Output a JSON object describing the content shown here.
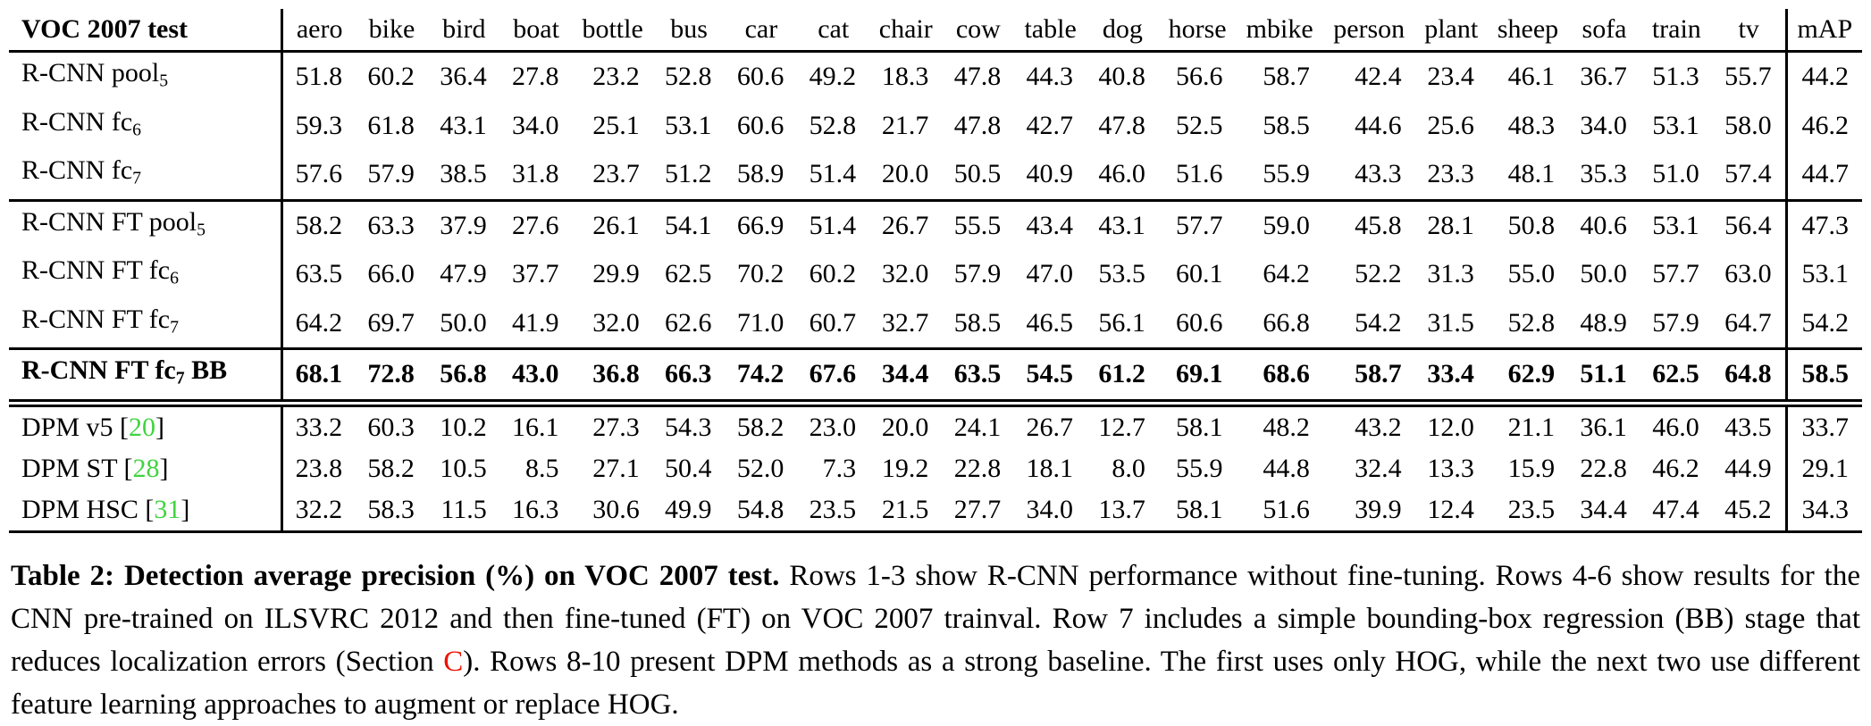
{
  "colors": {
    "citation_green": "#3fd43f",
    "link_red": "#ee1100",
    "text": "#000000",
    "background": "#ffffff"
  },
  "table": {
    "citation_brackets": {
      "open": "[",
      "close": "]"
    },
    "header": {
      "corner": "VOC 2007 test",
      "columns": [
        "aero",
        "bike",
        "bird",
        "boat",
        "bottle",
        "bus",
        "car",
        "cat",
        "chair",
        "cow",
        "table",
        "dog",
        "horse",
        "mbike",
        "person",
        "plant",
        "sheep",
        "sofa",
        "train",
        "tv"
      ],
      "map_label": "mAP"
    },
    "rows": [
      {
        "label": {
          "main": "R-CNN pool",
          "sub": "5",
          "suffix": "",
          "ref": ""
        },
        "bold": false,
        "rule_after": "",
        "values": [
          "51.8",
          "60.2",
          "36.4",
          "27.8",
          "23.2",
          "52.8",
          "60.6",
          "49.2",
          "18.3",
          "47.8",
          "44.3",
          "40.8",
          "56.6",
          "58.7",
          "42.4",
          "23.4",
          "46.1",
          "36.7",
          "51.3",
          "55.7"
        ],
        "map": "44.2"
      },
      {
        "label": {
          "main": "R-CNN fc",
          "sub": "6",
          "suffix": "",
          "ref": ""
        },
        "bold": false,
        "rule_after": "",
        "values": [
          "59.3",
          "61.8",
          "43.1",
          "34.0",
          "25.1",
          "53.1",
          "60.6",
          "52.8",
          "21.7",
          "47.8",
          "42.7",
          "47.8",
          "52.5",
          "58.5",
          "44.6",
          "25.6",
          "48.3",
          "34.0",
          "53.1",
          "58.0"
        ],
        "map": "46.2"
      },
      {
        "label": {
          "main": "R-CNN fc",
          "sub": "7",
          "suffix": "",
          "ref": ""
        },
        "bold": false,
        "rule_after": "single",
        "values": [
          "57.6",
          "57.9",
          "38.5",
          "31.8",
          "23.7",
          "51.2",
          "58.9",
          "51.4",
          "20.0",
          "50.5",
          "40.9",
          "46.0",
          "51.6",
          "55.9",
          "43.3",
          "23.3",
          "48.1",
          "35.3",
          "51.0",
          "57.4"
        ],
        "map": "44.7"
      },
      {
        "label": {
          "main": "R-CNN FT pool",
          "sub": "5",
          "suffix": "",
          "ref": ""
        },
        "bold": false,
        "rule_after": "",
        "values": [
          "58.2",
          "63.3",
          "37.9",
          "27.6",
          "26.1",
          "54.1",
          "66.9",
          "51.4",
          "26.7",
          "55.5",
          "43.4",
          "43.1",
          "57.7",
          "59.0",
          "45.8",
          "28.1",
          "50.8",
          "40.6",
          "53.1",
          "56.4"
        ],
        "map": "47.3"
      },
      {
        "label": {
          "main": "R-CNN FT fc",
          "sub": "6",
          "suffix": "",
          "ref": ""
        },
        "bold": false,
        "rule_after": "",
        "values": [
          "63.5",
          "66.0",
          "47.9",
          "37.7",
          "29.9",
          "62.5",
          "70.2",
          "60.2",
          "32.0",
          "57.9",
          "47.0",
          "53.5",
          "60.1",
          "64.2",
          "52.2",
          "31.3",
          "55.0",
          "50.0",
          "57.7",
          "63.0"
        ],
        "map": "53.1"
      },
      {
        "label": {
          "main": "R-CNN FT fc",
          "sub": "7",
          "suffix": "",
          "ref": ""
        },
        "bold": false,
        "rule_after": "single",
        "values": [
          "64.2",
          "69.7",
          "50.0",
          "41.9",
          "32.0",
          "62.6",
          "71.0",
          "60.7",
          "32.7",
          "58.5",
          "46.5",
          "56.1",
          "60.6",
          "66.8",
          "54.2",
          "31.5",
          "52.8",
          "48.9",
          "57.9",
          "64.7"
        ],
        "map": "54.2"
      },
      {
        "label": {
          "main": "R-CNN FT fc",
          "sub": "7",
          "suffix": " BB",
          "ref": ""
        },
        "bold": true,
        "rule_after": "double",
        "values": [
          "68.1",
          "72.8",
          "56.8",
          "43.0",
          "36.8",
          "66.3",
          "74.2",
          "67.6",
          "34.4",
          "63.5",
          "54.5",
          "61.2",
          "69.1",
          "68.6",
          "58.7",
          "33.4",
          "62.9",
          "51.1",
          "62.5",
          "64.8"
        ],
        "map": "58.5"
      },
      {
        "label": {
          "main": "DPM v5 ",
          "sub": "",
          "suffix": "",
          "ref": "20"
        },
        "bold": false,
        "rule_after": "",
        "values": [
          "33.2",
          "60.3",
          "10.2",
          "16.1",
          "27.3",
          "54.3",
          "58.2",
          "23.0",
          "20.0",
          "24.1",
          "26.7",
          "12.7",
          "58.1",
          "48.2",
          "43.2",
          "12.0",
          "21.1",
          "36.1",
          "46.0",
          "43.5"
        ],
        "map": "33.7"
      },
      {
        "label": {
          "main": "DPM ST ",
          "sub": "",
          "suffix": "",
          "ref": "28"
        },
        "bold": false,
        "rule_after": "",
        "values": [
          "23.8",
          "58.2",
          "10.5",
          "8.5",
          "27.1",
          "50.4",
          "52.0",
          "7.3",
          "19.2",
          "22.8",
          "18.1",
          "8.0",
          "55.9",
          "44.8",
          "32.4",
          "13.3",
          "15.9",
          "22.8",
          "46.2",
          "44.9"
        ],
        "map": "29.1"
      },
      {
        "label": {
          "main": "DPM HSC ",
          "sub": "",
          "suffix": "",
          "ref": "31"
        },
        "bold": false,
        "rule_after": "single",
        "values": [
          "32.2",
          "58.3",
          "11.5",
          "16.3",
          "30.6",
          "49.9",
          "54.8",
          "23.5",
          "21.5",
          "27.7",
          "34.0",
          "13.7",
          "58.1",
          "51.6",
          "39.9",
          "12.4",
          "23.5",
          "34.4",
          "47.4",
          "45.2"
        ],
        "map": "34.3"
      }
    ]
  },
  "caption": {
    "bold_lead": "Table 2: Detection average precision (%) on VOC 2007 test.",
    "text_before_link": " Rows 1-3 show R-CNN performance without fine-tuning. Rows 4-6 show results for the CNN pre-trained on ILSVRC 2012 and then fine-tuned (FT) on VOC 2007 trainval. Row 7 includes a simple bounding-box regression (BB) stage that reduces localization errors (Section ",
    "section_link": "C",
    "text_after_link": "). Rows 8-10 present DPM methods as a strong baseline. The first uses only HOG, while the next two use different feature learning approaches to augment or replace HOG."
  }
}
